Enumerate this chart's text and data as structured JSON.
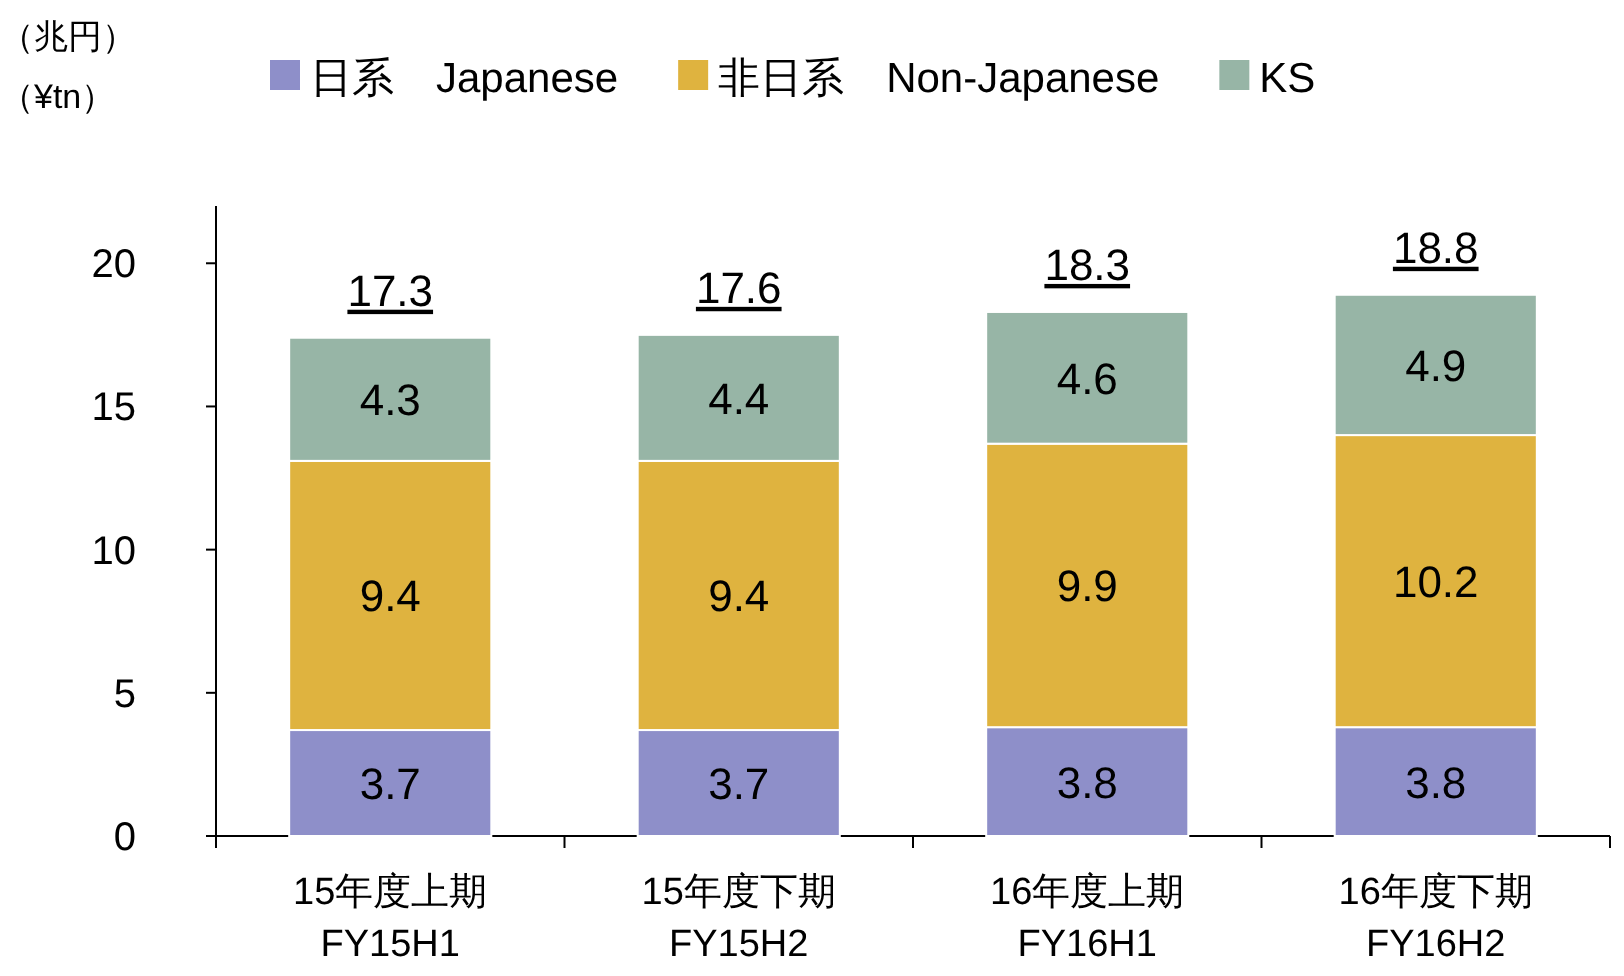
{
  "chart_data": {
    "type": "bar",
    "stacked": true,
    "ylabel": "（兆円）",
    "annotations": [
      "（¥tn）"
    ],
    "categories": [
      "15年度上期\nFY15H1",
      "15年度下期\nFY15H2",
      "16年度上期\nFY16H1",
      "16年度下期\nFY16H2"
    ],
    "series": [
      {
        "name": "日系　Japanese",
        "color": "#8e8fc9",
        "values": [
          3.7,
          3.7,
          3.8,
          3.8
        ]
      },
      {
        "name": "非日系　Non-Japanese",
        "color": "#dfb33f",
        "values": [
          9.4,
          9.4,
          9.9,
          10.2
        ]
      },
      {
        "name": "KS",
        "color": "#97b5a6",
        "values": [
          4.3,
          4.4,
          4.6,
          4.9
        ]
      }
    ],
    "totals": [
      "17.3",
      "17.6",
      "18.3",
      "18.8"
    ],
    "ylim": [
      0,
      22
    ],
    "yticks": [
      0,
      5,
      10,
      15,
      20
    ],
    "data_labels": true,
    "legend": "top",
    "grid": false
  }
}
